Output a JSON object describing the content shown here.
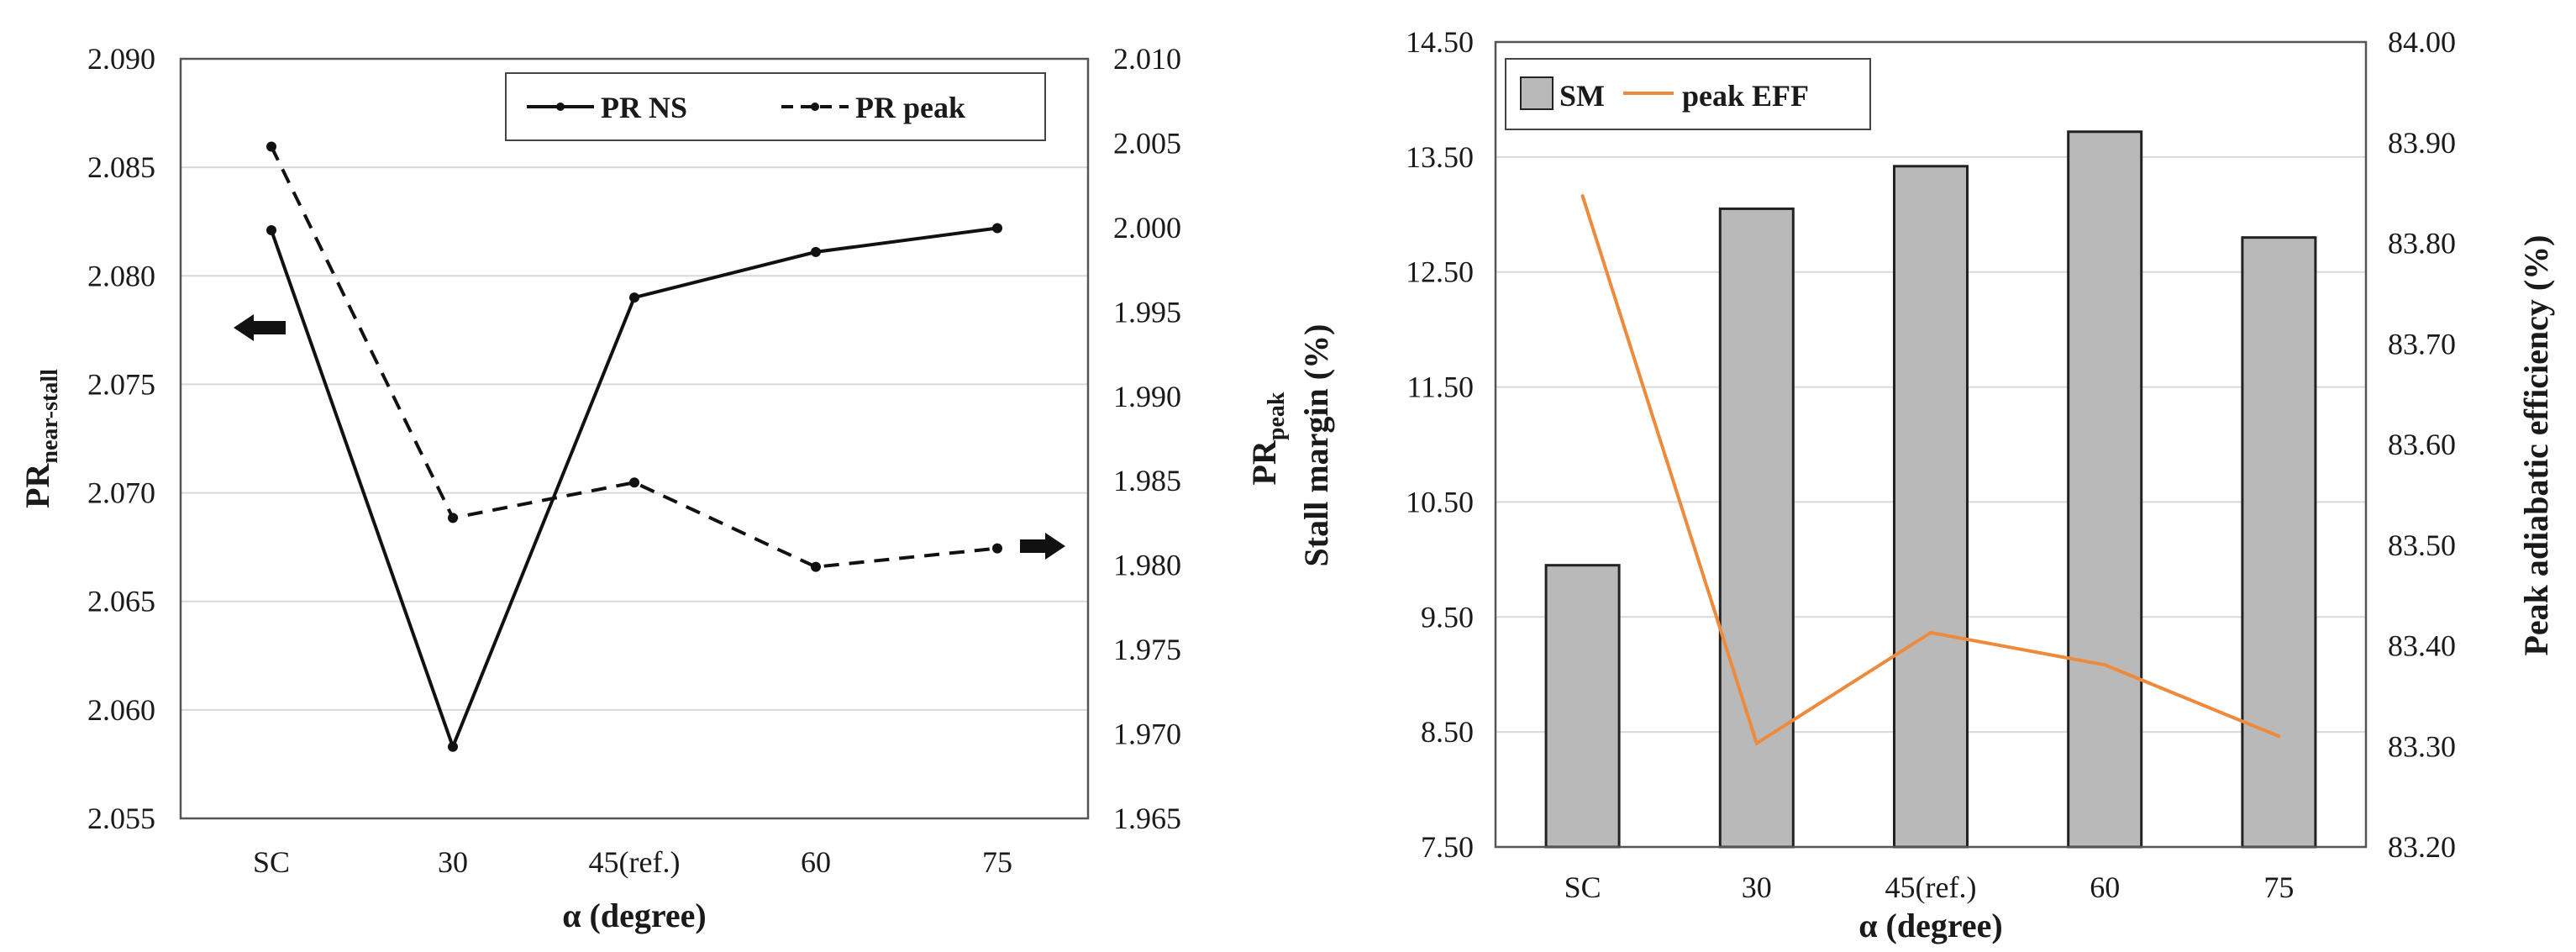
{
  "colors": {
    "line": "#111111",
    "bar_fill": "#b9b9b9",
    "bar_stroke": "#222222",
    "eff_line": "#ee8a3c",
    "grid": "#d9d9d9"
  },
  "chart_data": [
    {
      "type": "line",
      "categories": [
        "SC",
        "30",
        "45(ref.)",
        "60",
        "75"
      ],
      "xlabel": "α (degree)",
      "ylabel_left": {
        "main": "PR",
        "sub": "near-stall"
      },
      "ylabel_right": {
        "main": "PR",
        "sub": "peak"
      },
      "ylim_left": [
        2.055,
        2.09
      ],
      "yticks_left": [
        "2.055",
        "2.060",
        "2.065",
        "2.070",
        "2.075",
        "2.080",
        "2.085",
        "2.090"
      ],
      "ylim_right": [
        1.965,
        2.01
      ],
      "yticks_right": [
        "1.965",
        "1.970",
        "1.975",
        "1.980",
        "1.985",
        "1.990",
        "1.995",
        "2.000",
        "2.005",
        "2.010"
      ],
      "grid": true,
      "legend": "top-right",
      "series": [
        {
          "name": "PR NS",
          "axis": "left",
          "style": "solid",
          "values": [
            2.0821,
            2.0583,
            2.079,
            2.0811,
            2.0822
          ]
        },
        {
          "name": "PR peak",
          "axis": "right",
          "style": "dashed",
          "values": [
            2.0048,
            1.9828,
            1.9849,
            1.9799,
            1.981
          ]
        }
      ],
      "annotations": [
        {
          "type": "arrow",
          "direction": "left",
          "meaning": "PR NS uses left axis"
        },
        {
          "type": "arrow",
          "direction": "right",
          "meaning": "PR peak uses right axis"
        }
      ]
    },
    {
      "type": "bar+line",
      "categories": [
        "SC",
        "30",
        "45(ref.)",
        "60",
        "75"
      ],
      "xlabel": "α (degree)",
      "ylabel_left": "Stall margin (%)",
      "ylabel_right": "Peak adiabatic efficiency (%)",
      "ylim_left": [
        7.5,
        14.5
      ],
      "yticks_left": [
        "7.50",
        "8.50",
        "9.50",
        "10.50",
        "11.50",
        "12.50",
        "13.50",
        "14.50"
      ],
      "ylim_right": [
        83.2,
        84.0
      ],
      "yticks_right": [
        "83.20",
        "83.30",
        "83.40",
        "83.50",
        "83.60",
        "83.70",
        "83.80",
        "83.90",
        "84.00"
      ],
      "grid": true,
      "legend": "top-left",
      "series": [
        {
          "name": "SM",
          "type": "bar",
          "axis": "left",
          "values": [
            9.95,
            13.05,
            13.42,
            13.72,
            12.8
          ]
        },
        {
          "name": "peak EFF",
          "type": "line",
          "axis": "right",
          "values": [
            83.847,
            83.303,
            83.413,
            83.381,
            83.31
          ]
        }
      ]
    }
  ]
}
